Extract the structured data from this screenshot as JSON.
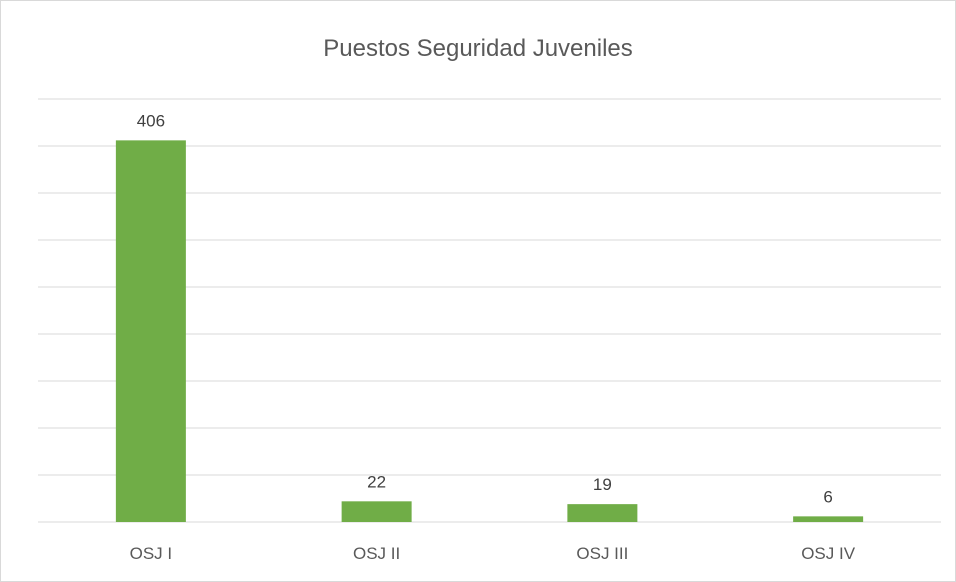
{
  "chart_data": {
    "type": "bar",
    "title": "Puestos Seguridad Juveniles",
    "categories": [
      "OSJ I",
      "OSJ II",
      "OSJ III",
      "OSJ IV"
    ],
    "values": [
      406,
      22,
      19,
      6
    ],
    "data_labels": [
      "406",
      "22",
      "19",
      "6"
    ],
    "ylim": [
      0,
      450
    ],
    "grid": true,
    "legend": "none",
    "colors": {
      "bar": "#70ad47",
      "grid": "#d9d9d9",
      "axis": "#d9d9d9"
    }
  }
}
